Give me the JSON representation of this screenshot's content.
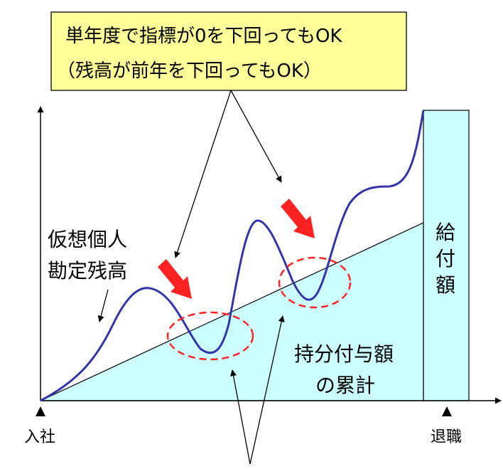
{
  "callout": {
    "line1": "単年度で指標が0を下回ってもOK",
    "line2": "（残高が前年を下回ってもOK）",
    "fill_color": "#FFFF99"
  },
  "labels": {
    "virtual_balance_line1": "仮想個人",
    "virtual_balance_line2": "勘定残高",
    "cumulative_line1": "持分付与額",
    "cumulative_line2": "の累計",
    "benefit_chars": [
      "給",
      "付",
      "額"
    ],
    "join": "入社",
    "retire": "退職"
  },
  "colors": {
    "area_fill": "#CCFFFF",
    "balance_curve": "#3333AA",
    "down_arrow": "#FF2222",
    "dip_ellipse": "#FF2222"
  }
}
